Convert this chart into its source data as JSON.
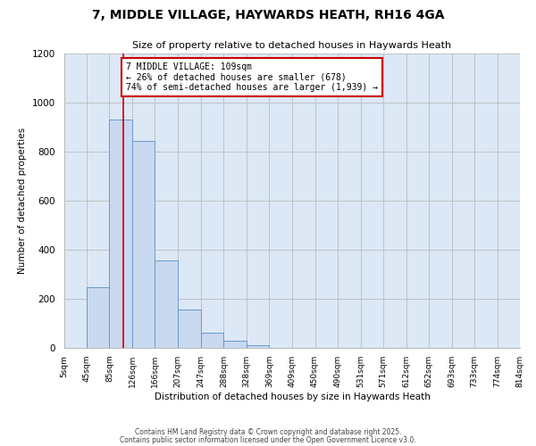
{
  "title": "7, MIDDLE VILLAGE, HAYWARDS HEATH, RH16 4GA",
  "subtitle": "Size of property relative to detached houses in Haywards Heath",
  "xlabel": "Distribution of detached houses by size in Haywards Heath",
  "ylabel": "Number of detached properties",
  "bar_color": "#c9d9f0",
  "bar_edge_color": "#6699cc",
  "plot_bg_color": "#dce8f5",
  "background_color": "#ffffff",
  "grid_color": "#bbbbbb",
  "annotation_box_color": "#cc0000",
  "vline_color": "#cc0000",
  "bin_edges": [
    5,
    45,
    85,
    126,
    166,
    207,
    247,
    288,
    328,
    369,
    409,
    450,
    490,
    531,
    571,
    612,
    652,
    693,
    733,
    774,
    814
  ],
  "bin_labels": [
    "5sqm",
    "45sqm",
    "85sqm",
    "126sqm",
    "166sqm",
    "207sqm",
    "247sqm",
    "288sqm",
    "328sqm",
    "369sqm",
    "409sqm",
    "450sqm",
    "490sqm",
    "531sqm",
    "571sqm",
    "612sqm",
    "652sqm",
    "693sqm",
    "733sqm",
    "774sqm",
    "814sqm"
  ],
  "bar_heights": [
    0,
    248,
    930,
    845,
    355,
    158,
    63,
    28,
    10,
    0,
    0,
    0,
    0,
    0,
    0,
    0,
    0,
    0,
    0,
    0
  ],
  "ylim": [
    0,
    1200
  ],
  "yticks": [
    0,
    200,
    400,
    600,
    800,
    1000,
    1200
  ],
  "vline_x": 109,
  "annotation_line1": "7 MIDDLE VILLAGE: 109sqm",
  "annotation_line2": "← 26% of detached houses are smaller (678)",
  "annotation_line3": "74% of semi-detached houses are larger (1,939) →",
  "footer1": "Contains HM Land Registry data © Crown copyright and database right 2025.",
  "footer2": "Contains public sector information licensed under the Open Government Licence v3.0."
}
